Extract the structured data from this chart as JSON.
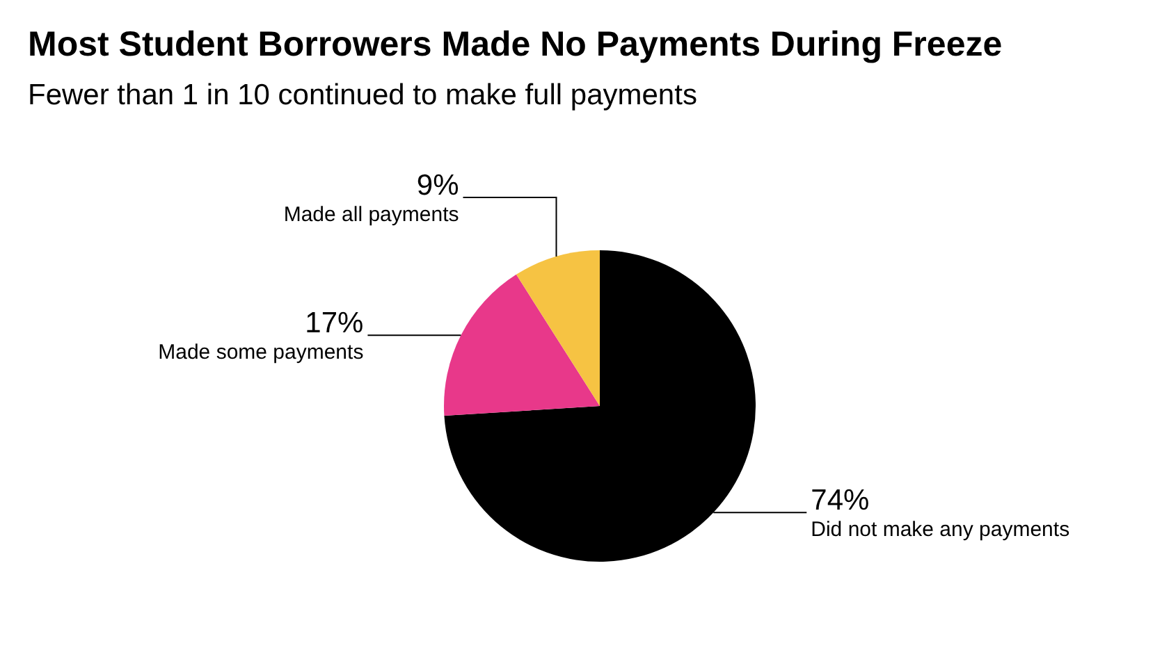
{
  "chart_data": {
    "type": "pie",
    "title": "Most Student Borrowers Made No Payments During Freeze",
    "subtitle": "Fewer than 1 in 10 continued to make full payments",
    "categories": [
      "Did not make any payments",
      "Made some payments",
      "Made all payments"
    ],
    "values": [
      74,
      17,
      9
    ],
    "colors": [
      "#000000",
      "#e8388a",
      "#f6c343"
    ],
    "value_labels": [
      "74%",
      "17%",
      "9%"
    ]
  }
}
